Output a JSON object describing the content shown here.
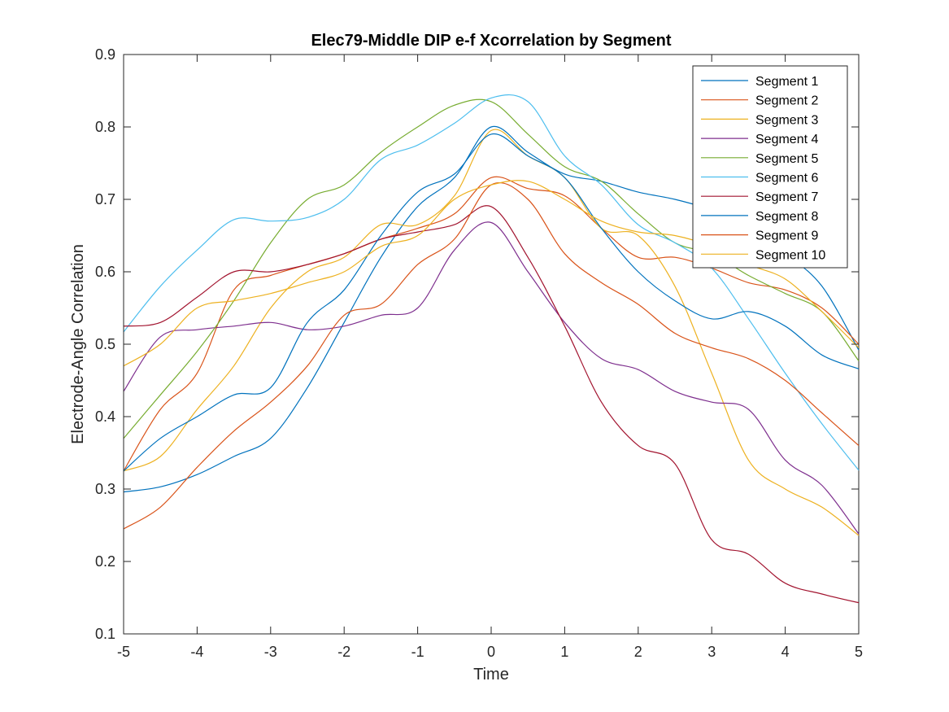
{
  "chart_data": {
    "type": "line",
    "title": "Elec79-Middle DIP e-f Xcorrelation by Segment",
    "xlabel": "Time",
    "ylabel": "Electrode-Angle Correlation",
    "xlim": [
      -5,
      5
    ],
    "ylim": [
      0.1,
      0.9
    ],
    "xticks": [
      -5,
      -4,
      -3,
      -2,
      -1,
      0,
      1,
      2,
      3,
      4,
      5
    ],
    "yticks": [
      0.1,
      0.2,
      0.3,
      0.4,
      0.5,
      0.6,
      0.7,
      0.8,
      0.9
    ],
    "legend_position": "top-right",
    "x": [
      -5,
      -4.5,
      -4,
      -3.5,
      -3,
      -2.5,
      -2,
      -1.5,
      -1,
      -0.5,
      0,
      0.5,
      1,
      1.5,
      2,
      2.5,
      3,
      3.5,
      4,
      4.5,
      5
    ],
    "series": [
      {
        "name": "Segment 1",
        "color": "#0072BD",
        "values": [
          0.296,
          0.303,
          0.32,
          0.345,
          0.37,
          0.44,
          0.53,
          0.62,
          0.69,
          0.73,
          0.8,
          0.765,
          0.735,
          0.725,
          0.71,
          0.7,
          0.685,
          0.66,
          0.625,
          0.58,
          0.492
        ]
      },
      {
        "name": "Segment 2",
        "color": "#D95319",
        "values": [
          0.325,
          0.41,
          0.46,
          0.575,
          0.595,
          0.61,
          0.625,
          0.645,
          0.66,
          0.68,
          0.73,
          0.715,
          0.705,
          0.66,
          0.62,
          0.62,
          0.605,
          0.585,
          0.575,
          0.55,
          0.5
        ]
      },
      {
        "name": "Segment 3",
        "color": "#EDB120",
        "values": [
          0.325,
          0.345,
          0.41,
          0.47,
          0.55,
          0.6,
          0.62,
          0.665,
          0.665,
          0.705,
          0.795,
          0.76,
          0.73,
          0.66,
          0.65,
          0.58,
          0.46,
          0.34,
          0.3,
          0.275,
          0.236
        ]
      },
      {
        "name": "Segment 4",
        "color": "#7E2F8E",
        "values": [
          0.435,
          0.51,
          0.52,
          0.525,
          0.53,
          0.52,
          0.525,
          0.54,
          0.55,
          0.63,
          0.668,
          0.6,
          0.53,
          0.48,
          0.465,
          0.435,
          0.42,
          0.41,
          0.34,
          0.305,
          0.238
        ]
      },
      {
        "name": "Segment 5",
        "color": "#77AC30",
        "values": [
          0.37,
          0.43,
          0.49,
          0.56,
          0.64,
          0.7,
          0.72,
          0.765,
          0.8,
          0.83,
          0.835,
          0.79,
          0.745,
          0.725,
          0.68,
          0.64,
          0.625,
          0.595,
          0.57,
          0.545,
          0.477
        ]
      },
      {
        "name": "Segment 6",
        "color": "#4DBEEE",
        "values": [
          0.517,
          0.58,
          0.63,
          0.672,
          0.67,
          0.675,
          0.7,
          0.755,
          0.775,
          0.805,
          0.84,
          0.835,
          0.76,
          0.72,
          0.665,
          0.64,
          0.605,
          0.535,
          0.46,
          0.39,
          0.326
        ]
      },
      {
        "name": "Segment 7",
        "color": "#A2142F",
        "values": [
          0.525,
          0.53,
          0.565,
          0.6,
          0.6,
          0.61,
          0.625,
          0.645,
          0.655,
          0.665,
          0.69,
          0.62,
          0.525,
          0.42,
          0.36,
          0.335,
          0.23,
          0.21,
          0.17,
          0.155,
          0.143
        ]
      },
      {
        "name": "Segment 8",
        "color": "#0072BD",
        "values": [
          0.325,
          0.37,
          0.4,
          0.43,
          0.44,
          0.53,
          0.575,
          0.65,
          0.71,
          0.735,
          0.79,
          0.76,
          0.73,
          0.66,
          0.6,
          0.56,
          0.535,
          0.545,
          0.525,
          0.485,
          0.466
        ]
      },
      {
        "name": "Segment 9",
        "color": "#D95319",
        "values": [
          0.245,
          0.275,
          0.33,
          0.38,
          0.42,
          0.47,
          0.54,
          0.555,
          0.61,
          0.645,
          0.72,
          0.7,
          0.625,
          0.585,
          0.555,
          0.515,
          0.495,
          0.48,
          0.45,
          0.405,
          0.36
        ]
      },
      {
        "name": "Segment 10",
        "color": "#EDB120",
        "values": [
          0.47,
          0.5,
          0.55,
          0.56,
          0.57,
          0.585,
          0.6,
          0.635,
          0.65,
          0.7,
          0.72,
          0.725,
          0.7,
          0.67,
          0.655,
          0.65,
          0.635,
          0.61,
          0.59,
          0.545,
          0.495
        ]
      }
    ]
  }
}
